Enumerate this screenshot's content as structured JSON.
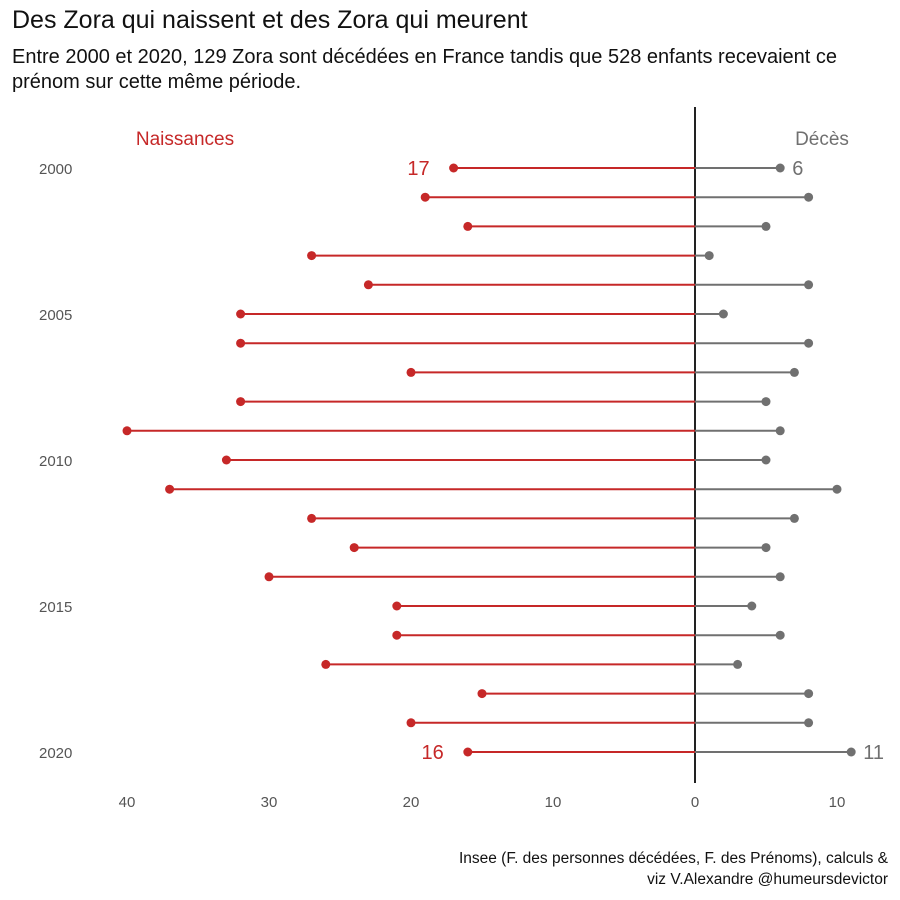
{
  "title": "Des Zora qui naissent et des Zora qui meurent",
  "subtitle": "Entre 2000 et 2020, 129 Zora sont décédées en France tandis que 528 enfants recevaient ce prénom sur cette même période.",
  "caption": {
    "line1": "Insee (F. des personnes décédées, F. des Prénoms), calculs &",
    "line2": "viz V.Alexandre @humeursdevictor"
  },
  "colors": {
    "births": "#c62828",
    "deaths": "#707070",
    "axis": "#222222",
    "tick_text": "#555555"
  },
  "chart_data": {
    "type": "bar",
    "orientation": "horizontal-diverging",
    "years": [
      2000,
      2001,
      2002,
      2003,
      2004,
      2005,
      2006,
      2007,
      2008,
      2009,
      2010,
      2011,
      2012,
      2013,
      2014,
      2015,
      2016,
      2017,
      2018,
      2019,
      2020
    ],
    "series": [
      {
        "name": "Naissances",
        "side": "left",
        "values": [
          17,
          19,
          16,
          27,
          23,
          32,
          32,
          20,
          32,
          40,
          33,
          37,
          27,
          24,
          30,
          21,
          21,
          26,
          15,
          20,
          16
        ]
      },
      {
        "name": "Décès",
        "side": "right",
        "values": [
          6,
          8,
          5,
          1,
          8,
          2,
          8,
          7,
          5,
          6,
          5,
          10,
          7,
          5,
          6,
          4,
          6,
          3,
          8,
          8,
          11
        ]
      }
    ],
    "y_tick_labels": [
      "2000",
      "2005",
      "2010",
      "2015",
      "2020"
    ],
    "x_tick_labels": [
      "40",
      "30",
      "20",
      "10",
      "0",
      "10"
    ],
    "x_tick_values": [
      -40,
      -30,
      -20,
      -10,
      0,
      10
    ],
    "xlim": [
      -40,
      11
    ],
    "annotations": [
      {
        "series": "Naissances",
        "year": 2000,
        "text": "17"
      },
      {
        "series": "Naissances",
        "year": 2020,
        "text": "16"
      },
      {
        "series": "Décès",
        "year": 2000,
        "text": "6"
      },
      {
        "series": "Décès",
        "year": 2020,
        "text": "11"
      }
    ],
    "grid": false,
    "legend": "series names as text labels at top-left and top-right"
  }
}
